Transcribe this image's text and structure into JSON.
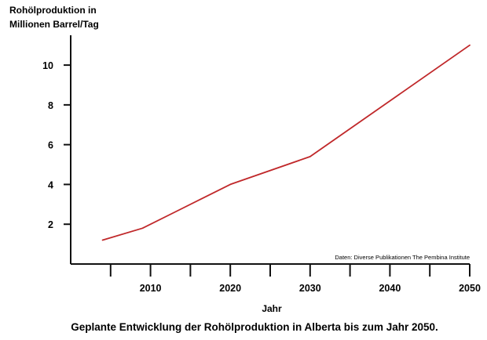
{
  "chart_data": {
    "type": "line",
    "title": "Geplante Entwicklung der Rohölproduktion in Alberta bis zum Jahr 2050.",
    "ylabel_lines": [
      "Rohölproduktion in",
      "Millionen Barrel/Tag"
    ],
    "xlabel": "Jahr",
    "source": "Daten: Diverse Publikationen The Pembina Institute",
    "xlim": [
      2000,
      2050
    ],
    "ylim": [
      0,
      11.5
    ],
    "x_ticks": [
      2005,
      2010,
      2015,
      2020,
      2025,
      2030,
      2035,
      2040,
      2045,
      2050
    ],
    "x_tick_labels": [
      {
        "value": 2010,
        "label": "2010"
      },
      {
        "value": 2020,
        "label": "2020"
      },
      {
        "value": 2030,
        "label": "2030"
      },
      {
        "value": 2040,
        "label": "2040"
      },
      {
        "value": 2050,
        "label": "2050"
      }
    ],
    "y_ticks": [
      {
        "value": 2,
        "label": "2"
      },
      {
        "value": 4,
        "label": "4"
      },
      {
        "value": 6,
        "label": "6"
      },
      {
        "value": 8,
        "label": "8"
      },
      {
        "value": 10,
        "label": "10"
      }
    ],
    "grid": false,
    "legend": "none",
    "series": [
      {
        "color": "#c0282a",
        "points": [
          {
            "x": 2004,
            "y": 1.2
          },
          {
            "x": 2009,
            "y": 1.8
          },
          {
            "x": 2013,
            "y": 2.6
          },
          {
            "x": 2020,
            "y": 4.0
          },
          {
            "x": 2030,
            "y": 5.4
          },
          {
            "x": 2050,
            "y": 11.0
          }
        ]
      }
    ]
  }
}
